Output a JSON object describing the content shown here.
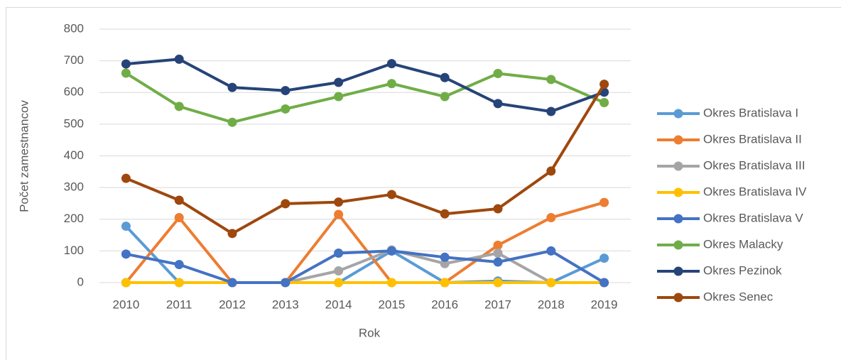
{
  "chart_data": {
    "type": "line",
    "x_label": "Rok",
    "y_label": "Počet zamestnancov",
    "categories": [
      "2010",
      "2011",
      "2012",
      "2013",
      "2014",
      "2015",
      "2016",
      "2017",
      "2018",
      "2019"
    ],
    "ylim": [
      0,
      800
    ],
    "yticks": [
      0,
      100,
      200,
      300,
      400,
      500,
      600,
      700,
      800
    ],
    "grid": true,
    "legend": "right",
    "series": [
      {
        "name": "Okres Bratislava I",
        "color": "#5B9BD5",
        "values": [
          178,
          0,
          0,
          0,
          0,
          100,
          0,
          5,
          0,
          77
        ]
      },
      {
        "name": "Okres Bratislava II",
        "color": "#ED7D31",
        "values": [
          0,
          205,
          0,
          0,
          215,
          0,
          0,
          118,
          205,
          253
        ]
      },
      {
        "name": "Okres Bratislava III",
        "color": "#A5A5A5",
        "values": [
          0,
          0,
          0,
          0,
          37,
          103,
          60,
          93,
          0,
          0
        ]
      },
      {
        "name": "Okres Bratislava IV",
        "color": "#FFC000",
        "values": [
          0,
          0,
          0,
          0,
          0,
          0,
          0,
          0,
          0,
          0
        ]
      },
      {
        "name": "Okres Bratislava V",
        "color": "#4472C4",
        "values": [
          90,
          57,
          0,
          0,
          93,
          100,
          80,
          65,
          100,
          0
        ]
      },
      {
        "name": "Okres Malacky",
        "color": "#70AD47",
        "values": [
          661,
          556,
          506,
          548,
          587,
          628,
          587,
          660,
          641,
          568
        ]
      },
      {
        "name": "Okres Pezinok",
        "color": "#264478",
        "values": [
          690,
          705,
          616,
          606,
          632,
          691,
          647,
          565,
          540,
          601
        ]
      },
      {
        "name": "Okres Senec",
        "color": "#9E480E",
        "values": [
          329,
          260,
          155,
          249,
          254,
          278,
          217,
          233,
          352,
          626
        ]
      }
    ]
  }
}
